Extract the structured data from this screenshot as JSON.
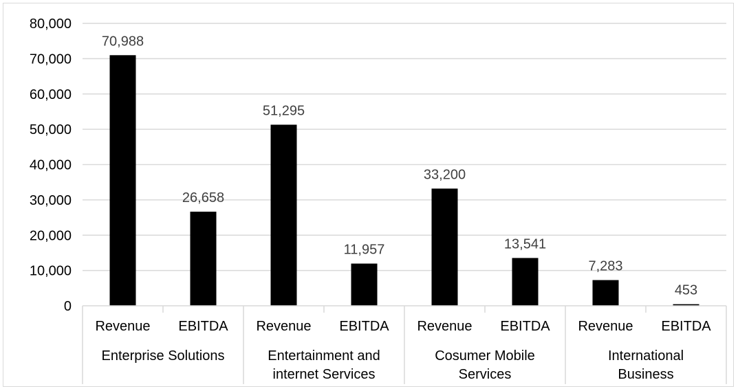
{
  "chart_data": {
    "type": "bar",
    "title": "",
    "xlabel": "",
    "ylabel": "",
    "ylim": [
      0,
      80000
    ],
    "yticks": [
      0,
      10000,
      20000,
      30000,
      40000,
      50000,
      60000,
      70000,
      80000
    ],
    "ytick_labels": [
      "0",
      "10,000",
      "20,000",
      "30,000",
      "40,000",
      "50,000",
      "60,000",
      "70,000",
      "80,000"
    ],
    "grid": true,
    "legend": "none",
    "bar_color": "#000000",
    "grid_color": "#d9d9d9",
    "groups": [
      {
        "label_lines": [
          "Enterprise Solutions"
        ],
        "bars": [
          {
            "category": "Revenue",
            "value": 70988,
            "label": "70,988"
          },
          {
            "category": "EBITDA",
            "value": 26658,
            "label": "26,658"
          }
        ]
      },
      {
        "label_lines": [
          "Entertainment and",
          "internet Services"
        ],
        "bars": [
          {
            "category": "Revenue",
            "value": 51295,
            "label": "51,295"
          },
          {
            "category": "EBITDA",
            "value": 11957,
            "label": "11,957"
          }
        ]
      },
      {
        "label_lines": [
          "Cosumer Mobile",
          "Services"
        ],
        "bars": [
          {
            "category": "Revenue",
            "value": 33200,
            "label": "33,200"
          },
          {
            "category": "EBITDA",
            "value": 13541,
            "label": "13,541"
          }
        ]
      },
      {
        "label_lines": [
          "International",
          "Business"
        ],
        "bars": [
          {
            "category": "Revenue",
            "value": 7283,
            "label": "7,283"
          },
          {
            "category": "EBITDA",
            "value": 453,
            "label": "453"
          }
        ]
      }
    ]
  }
}
